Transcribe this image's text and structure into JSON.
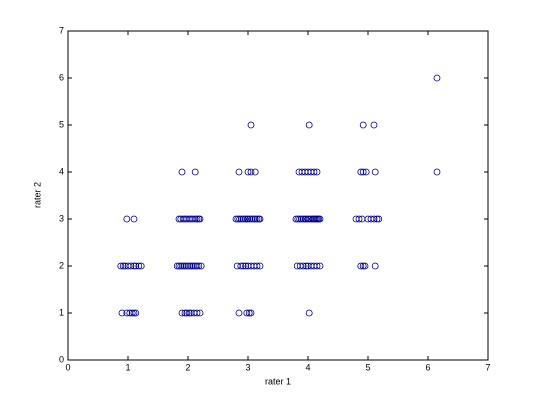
{
  "chart_data": {
    "type": "scatter",
    "xlabel": "rater 1",
    "ylabel": "rater 2",
    "xlim": [
      0,
      7
    ],
    "ylim": [
      0,
      7
    ],
    "xticks": [
      0,
      1,
      2,
      3,
      4,
      5,
      6,
      7
    ],
    "yticks": [
      0,
      1,
      2,
      3,
      4,
      5,
      6,
      7
    ],
    "marker_color": "#00008b",
    "series": [
      {
        "x": [
          0.9,
          0.98,
          1.03,
          1.07,
          1.1,
          1.13,
          1.9,
          1.95,
          1.98,
          2.02,
          2.05,
          2.1,
          2.15,
          2.2,
          2.85,
          2.98,
          3.02,
          3.05,
          4.02,
          0.88,
          0.92,
          0.95,
          1.0,
          1.05,
          1.1,
          1.13,
          1.18,
          1.22,
          1.82,
          1.85,
          1.88,
          1.91,
          1.94,
          1.97,
          2.0,
          2.03,
          2.06,
          2.09,
          2.12,
          2.15,
          2.18,
          2.22,
          2.82,
          2.88,
          2.92,
          2.96,
          3.0,
          3.05,
          3.1,
          3.15,
          3.2,
          3.82,
          3.87,
          3.92,
          3.97,
          4.0,
          4.05,
          4.1,
          4.15,
          4.2,
          4.88,
          4.92,
          4.95,
          5.12,
          0.98,
          1.1,
          1.85,
          1.88,
          1.92,
          1.95,
          1.98,
          2.02,
          2.05,
          2.08,
          2.12,
          2.15,
          2.18,
          2.2,
          2.8,
          2.83,
          2.86,
          2.89,
          2.92,
          2.95,
          2.98,
          3.0,
          3.03,
          3.06,
          3.09,
          3.12,
          3.15,
          3.18,
          3.2,
          3.8,
          3.83,
          3.86,
          3.89,
          3.92,
          3.95,
          3.97,
          4.0,
          4.02,
          4.05,
          4.08,
          4.1,
          4.12,
          4.14,
          4.16,
          4.18,
          4.2,
          4.8,
          4.85,
          4.9,
          5.0,
          5.05,
          5.1,
          5.15,
          5.18,
          1.9,
          2.12,
          2.85,
          3.0,
          3.05,
          3.12,
          3.85,
          3.9,
          3.95,
          4.0,
          4.05,
          4.1,
          4.15,
          4.88,
          4.92,
          4.97,
          5.12,
          6.15,
          3.05,
          4.02,
          4.92,
          5.1,
          6.15
        ],
        "values": [
          1,
          1,
          1,
          1,
          1,
          1,
          1,
          1,
          1,
          1,
          1,
          1,
          1,
          1,
          1,
          1,
          1,
          1,
          1,
          2,
          2,
          2,
          2,
          2,
          2,
          2,
          2,
          2,
          2,
          2,
          2,
          2,
          2,
          2,
          2,
          2,
          2,
          2,
          2,
          2,
          2,
          2,
          2,
          2,
          2,
          2,
          2,
          2,
          2,
          2,
          2,
          2,
          2,
          2,
          2,
          2,
          2,
          2,
          2,
          2,
          2,
          2,
          2,
          2,
          3,
          3,
          3,
          3,
          3,
          3,
          3,
          3,
          3,
          3,
          3,
          3,
          3,
          3,
          3,
          3,
          3,
          3,
          3,
          3,
          3,
          3,
          3,
          3,
          3,
          3,
          3,
          3,
          3,
          3,
          3,
          3,
          3,
          3,
          3,
          3,
          3,
          3,
          3,
          3,
          3,
          3,
          3,
          3,
          3,
          3,
          3,
          3,
          3,
          3,
          3,
          3,
          3,
          3,
          4,
          4,
          4,
          4,
          4,
          4,
          4,
          4,
          4,
          4,
          4,
          4,
          4,
          4,
          4,
          4,
          4,
          4,
          5,
          5,
          5,
          5,
          6
        ]
      }
    ]
  }
}
